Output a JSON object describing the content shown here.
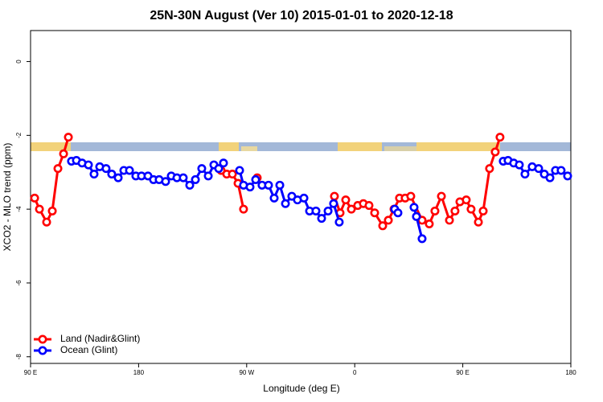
{
  "chart_data": {
    "type": "line",
    "title": "25N-30N August (Ver 10)   2015-01-01 to 2020-12-18",
    "x_label": "Longitude (deg E)",
    "y_label": "XCO2 - MLO trend (ppm)",
    "xlim": [
      90,
      540
    ],
    "ylim": [
      -8.18,
      0.84
    ],
    "xticks": [
      {
        "value": 90,
        "label": "90 E"
      },
      {
        "value": 180,
        "label": "180"
      },
      {
        "value": 270,
        "label": "90 W"
      },
      {
        "value": 360,
        "label": "0"
      },
      {
        "value": 450,
        "label": "90 E"
      },
      {
        "value": 540,
        "label": "180"
      }
    ],
    "yticks": [
      -8,
      -6,
      -4,
      -2,
      0
    ],
    "legend": "bottom-left",
    "series": [
      {
        "name": "Land (Nadir&Glint)",
        "color": "#ff0000",
        "x": [
          93.4,
          97.4,
          103.4,
          108.1,
          112.8,
          117.5,
          121.5,
          null,
          248.7,
          253.4,
          258.1,
          262.8,
          267.4,
          null,
          278.8,
          null,
          343.1,
          347.8,
          352.5,
          357.2,
          362.5,
          367.2,
          371.9,
          376.6,
          383.3,
          388.0,
          392.7,
          397.3,
          402.0,
          406.7,
          416.1,
          422.1,
          426.8,
          432.2,
          438.9,
          443.5,
          447.6,
          452.9,
          456.9,
          463.0,
          467.0,
          472.3,
          477.0,
          481.0
        ],
        "values": [
          -3.7,
          -4.0,
          -4.35,
          -4.05,
          -2.9,
          -2.5,
          -2.05,
          null,
          -2.95,
          -3.05,
          -3.05,
          -3.3,
          -4.0,
          null,
          -3.15,
          null,
          -3.65,
          -4.1,
          -3.75,
          -4.0,
          -3.9,
          -3.85,
          -3.9,
          -4.1,
          -4.45,
          -4.3,
          -4.0,
          -3.7,
          -3.7,
          -3.65,
          -4.3,
          -4.4,
          -4.05,
          -3.65,
          -4.3,
          -4.05,
          -3.8,
          -3.75,
          -4.0,
          -4.35,
          -4.05,
          -2.9,
          -2.45,
          -2.05
        ]
      },
      {
        "name": "Ocean (Glint)",
        "color": "#0000ff",
        "x": [
          124.1,
          128.2,
          132.9,
          138.2,
          142.9,
          147.6,
          152.9,
          157.6,
          163.0,
          167.7,
          172.4,
          177.7,
          182.4,
          187.8,
          192.4,
          197.1,
          202.5,
          207.2,
          211.9,
          217.2,
          222.6,
          227.3,
          232.6,
          238.0,
          242.7,
          246.7,
          250.7,
          null,
          264.1,
          267.4,
          272.8,
          277.5,
          282.8,
          288.2,
          292.9,
          297.6,
          302.3,
          307.6,
          312.3,
          317.7,
          322.4,
          327.7,
          332.4,
          337.8,
          342.4,
          347.1,
          null,
          393.3,
          396.0,
          null,
          409.4,
          411.4,
          416.1,
          null,
          483.7,
          487.7,
          492.4,
          497.1,
          501.8,
          507.8,
          513.2,
          517.9,
          522.6,
          527.2,
          531.9,
          537.3
        ],
        "values": [
          -2.7,
          -2.68,
          -2.75,
          -2.8,
          -3.05,
          -2.85,
          -2.9,
          -3.05,
          -3.15,
          -2.95,
          -2.95,
          -3.1,
          -3.1,
          -3.1,
          -3.2,
          -3.2,
          -3.25,
          -3.1,
          -3.15,
          -3.15,
          -3.35,
          -3.2,
          -2.9,
          -3.1,
          -2.8,
          -2.9,
          -2.75,
          null,
          -2.95,
          -3.35,
          -3.4,
          -3.2,
          -3.35,
          -3.35,
          -3.7,
          -3.35,
          -3.85,
          -3.65,
          -3.75,
          -3.7,
          -4.05,
          -4.05,
          -4.25,
          -4.05,
          -3.85,
          -4.35,
          null,
          -4.0,
          -4.1,
          null,
          -3.95,
          -4.2,
          -4.8,
          null,
          -2.7,
          -2.68,
          -2.75,
          -2.8,
          -3.05,
          -2.85,
          -2.9,
          -3.05,
          -3.15,
          -2.95,
          -2.95,
          -3.1
        ]
      }
    ]
  }
}
